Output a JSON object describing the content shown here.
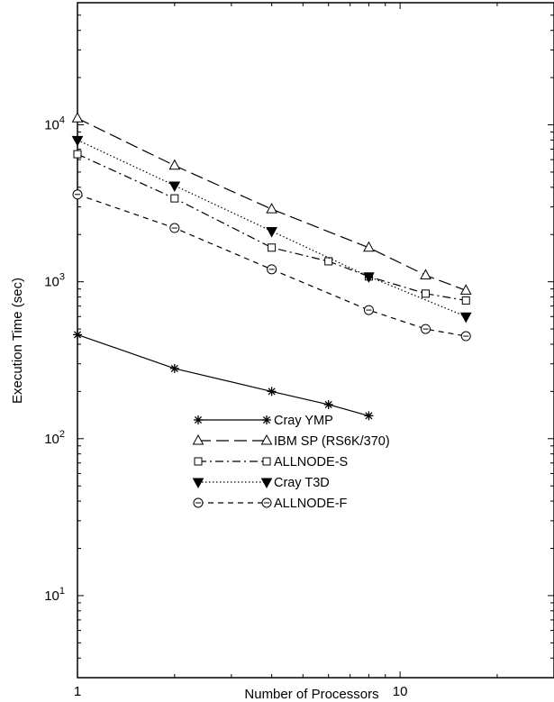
{
  "chart_data": {
    "type": "line",
    "xlabel": "Number of Processors",
    "ylabel": "Execution Time (sec)",
    "x_scale": "log",
    "y_scale": "log",
    "xlim": [
      1,
      30
    ],
    "ylim": [
      3,
      60000
    ],
    "x_ticks": [
      {
        "value": 1,
        "label": "1"
      },
      {
        "value": 10,
        "label": "10"
      }
    ],
    "y_ticks": [
      {
        "value": 10,
        "base": "10",
        "exp": "1"
      },
      {
        "value": 100,
        "base": "10",
        "exp": "2"
      },
      {
        "value": 1000,
        "base": "10",
        "exp": "3"
      },
      {
        "value": 10000,
        "base": "10",
        "exp": "4"
      }
    ],
    "grid": false,
    "legend_position": "center-left",
    "series": [
      {
        "name": "Cray YMP",
        "marker": "asterisk",
        "dash": "solid",
        "x": [
          1,
          2,
          4,
          6,
          8
        ],
        "y": [
          460,
          280,
          200,
          165,
          140
        ]
      },
      {
        "name": "IBM SP (RS6K/370)",
        "marker": "triangle-up",
        "dash": "long-dash",
        "x": [
          1,
          2,
          4,
          8,
          12,
          16
        ],
        "y": [
          11000,
          5500,
          2900,
          1650,
          1100,
          880
        ]
      },
      {
        "name": "ALLNODE-S",
        "marker": "square",
        "dash": "dash-dot",
        "x": [
          1,
          2,
          4,
          6,
          8,
          12,
          16
        ],
        "y": [
          6500,
          3400,
          1650,
          1350,
          1080,
          840,
          760
        ]
      },
      {
        "name": "Cray T3D",
        "marker": "triangle-down-filled",
        "dash": "dotted",
        "x": [
          1,
          2,
          4,
          8,
          16
        ],
        "y": [
          8000,
          4100,
          2100,
          1080,
          600
        ]
      },
      {
        "name": "ALLNODE-F",
        "marker": "circle",
        "dash": "dashed",
        "x": [
          1,
          2,
          4,
          8,
          12,
          16
        ],
        "y": [
          3600,
          2200,
          1200,
          660,
          500,
          450
        ]
      }
    ]
  }
}
